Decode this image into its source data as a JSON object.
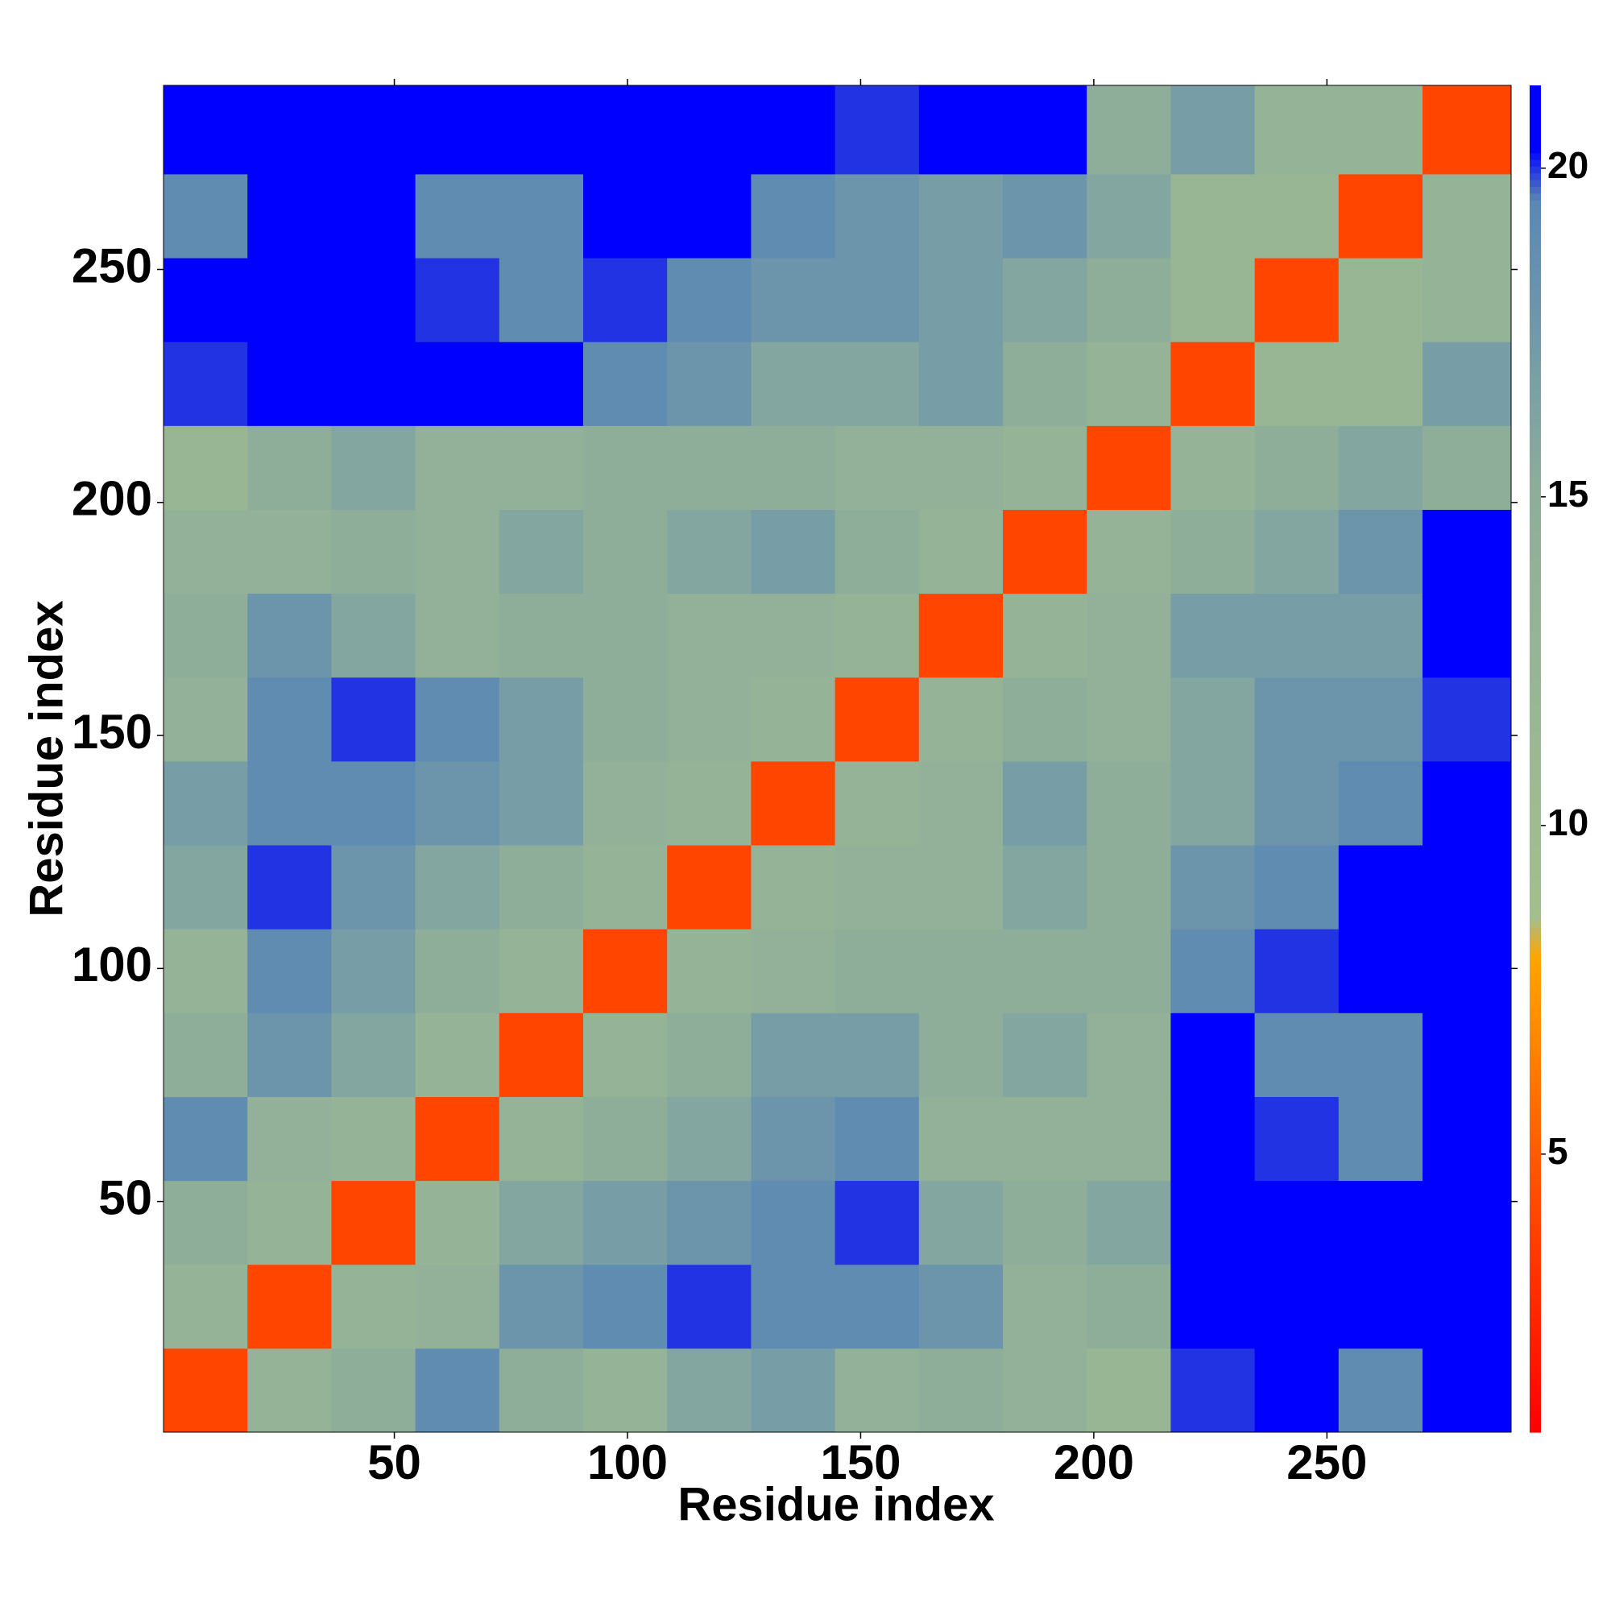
{
  "chart_data": {
    "type": "heatmap",
    "xlabel": "Residue index",
    "ylabel": "Residue index",
    "xlim": [
      0.5,
      289.5
    ],
    "ylim": [
      0.5,
      289.5
    ],
    "xticks": [
      50,
      100,
      150,
      200,
      250
    ],
    "yticks": [
      50,
      100,
      150,
      200,
      250
    ],
    "x_bins": [
      0.5,
      18.5,
      36.5,
      54.5,
      72.5,
      90.5,
      108.5,
      126.5,
      144.5,
      162.5,
      180.5,
      198.5,
      216.5,
      234.5,
      252.5,
      270.5,
      289.5
    ],
    "y_bins": [
      0.5,
      18.5,
      36.5,
      54.5,
      72.5,
      90.5,
      108.5,
      126.5,
      144.5,
      162.5,
      180.5,
      198.5,
      216.5,
      234.5,
      252.5,
      270.5,
      289.5
    ],
    "z": [
      [
        4,
        13,
        15,
        19,
        15,
        13,
        16,
        17,
        14,
        15,
        14,
        12,
        20,
        21,
        19,
        21
      ],
      [
        13,
        4,
        13,
        14,
        18,
        19,
        20,
        19,
        19,
        18,
        14,
        15,
        21,
        21,
        21,
        21
      ],
      [
        15,
        13,
        4,
        13,
        16,
        17,
        18,
        19,
        20,
        16,
        15,
        16,
        21,
        21,
        21,
        21
      ],
      [
        19,
        14,
        13,
        4,
        13,
        15,
        16,
        18,
        19,
        14,
        14,
        14,
        21,
        20,
        19,
        21
      ],
      [
        15,
        18,
        16,
        13,
        4,
        13,
        15,
        17,
        17,
        15,
        16,
        14,
        21,
        19,
        19,
        21
      ],
      [
        13,
        19,
        17,
        15,
        13,
        4,
        13,
        14,
        15,
        15,
        15,
        15,
        19,
        20,
        21,
        21
      ],
      [
        16,
        20,
        18,
        16,
        15,
        13,
        4,
        13,
        14,
        14,
        16,
        15,
        18,
        19,
        21,
        21
      ],
      [
        17,
        19,
        19,
        18,
        17,
        14,
        13,
        4,
        13,
        14,
        17,
        15,
        16,
        18,
        19,
        21
      ],
      [
        14,
        19,
        20,
        19,
        17,
        15,
        14,
        13,
        4,
        13,
        15,
        14,
        16,
        18,
        18,
        20
      ],
      [
        15,
        18,
        16,
        14,
        15,
        15,
        14,
        14,
        13,
        4,
        13,
        14,
        17,
        17,
        17,
        21
      ],
      [
        14,
        14,
        15,
        14,
        16,
        15,
        16,
        17,
        15,
        13,
        4,
        13,
        15,
        16,
        18,
        21
      ],
      [
        12,
        15,
        16,
        14,
        14,
        15,
        15,
        15,
        14,
        14,
        13,
        4,
        13,
        15,
        16,
        15
      ],
      [
        20,
        21,
        21,
        21,
        21,
        19,
        18,
        16,
        16,
        17,
        15,
        13,
        4,
        12,
        12,
        17
      ],
      [
        21,
        21,
        21,
        20,
        19,
        20,
        19,
        18,
        18,
        17,
        16,
        15,
        12,
        4,
        12,
        13
      ],
      [
        19,
        21,
        21,
        19,
        19,
        21,
        21,
        19,
        18,
        17,
        18,
        16,
        12,
        12,
        4,
        13
      ],
      [
        21,
        21,
        21,
        21,
        21,
        21,
        21,
        21,
        20,
        21,
        21,
        15,
        17,
        13,
        13,
        4
      ]
    ],
    "clim": [
      0.77,
      21.26
    ],
    "cticks": [
      5,
      10,
      15,
      20
    ],
    "colorscale": [
      [
        0.77,
        "#ff0000"
      ],
      [
        5,
        "#ff5a00"
      ],
      [
        8,
        "#ffa500"
      ],
      [
        8.6,
        "#a3bf8e"
      ],
      [
        15,
        "#8fae9a"
      ],
      [
        19.5,
        "#5a88b5"
      ],
      [
        20.3,
        "#0000ff"
      ],
      [
        21.26,
        "#0000ff"
      ]
    ]
  }
}
